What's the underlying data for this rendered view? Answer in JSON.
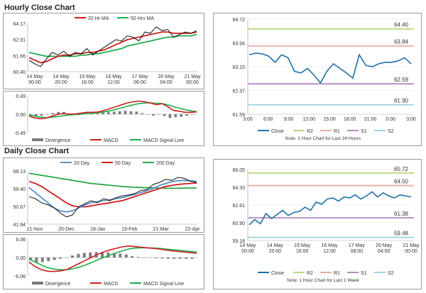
{
  "sections": [
    {
      "title": "Hourly Close Chart"
    },
    {
      "title": "Daily Close Chart"
    }
  ],
  "colors": {
    "close": "#1f6fa8",
    "ma_short": "#cc1f1f",
    "ma_long": "#1fae4c",
    "ma_200": "#2aa64a",
    "ma_20": "#5a8fc6",
    "divergence": "#7a7a7a",
    "r2": "#b8d884",
    "r1": "#e4b0a4",
    "s1": "#b48ac0",
    "s2": "#9cd2e0",
    "grid": "#c8c8c8"
  },
  "chart_data": [
    {
      "id": "hourly-price",
      "type": "line",
      "legend": [
        "20 Hr MA",
        "50 Hrs MA"
      ],
      "x_ticks": [
        "14 May\n00:00",
        "14 May\n20:00",
        "15 May\n16:00",
        "16 May\n12:00",
        "17 May\n08:00",
        "20 May\n04:00",
        "21 May\n00:00"
      ],
      "y_ticks": [
        "64.17",
        "62.91",
        "61.66",
        "60.40"
      ],
      "ylim": [
        60.4,
        64.17
      ],
      "series": [
        {
          "name": "Close",
          "color": "#111111",
          "values": [
            61.3,
            61.0,
            60.8,
            61.4,
            61.9,
            61.7,
            62.0,
            61.6,
            61.9,
            61.8,
            62.2,
            61.7,
            62.0,
            62.3,
            62.6,
            62.9,
            62.8,
            63.2,
            63.1,
            62.8,
            63.5,
            63.4,
            63.9,
            63.6,
            63.7,
            63.1,
            63.3,
            63.5,
            63.4,
            63.6
          ]
        },
        {
          "name": "20 Hr MA",
          "color": "#cc1f1f",
          "values": [
            61.5,
            61.3,
            61.1,
            61.2,
            61.4,
            61.6,
            61.7,
            61.7,
            61.8,
            61.8,
            61.9,
            61.9,
            62.0,
            62.1,
            62.3,
            62.5,
            62.7,
            62.9,
            63.0,
            63.1,
            63.2,
            63.3,
            63.4,
            63.5,
            63.5,
            63.4,
            63.4,
            63.4,
            63.4,
            63.5
          ]
        },
        {
          "name": "50 Hrs MA",
          "color": "#1fae4c",
          "values": [
            61.9,
            61.8,
            61.7,
            61.6,
            61.6,
            61.6,
            61.6,
            61.6,
            61.6,
            61.7,
            61.7,
            61.8,
            61.8,
            61.9,
            62.0,
            62.1,
            62.2,
            62.4,
            62.5,
            62.6,
            62.7,
            62.8,
            62.9,
            63.0,
            63.1,
            63.1,
            63.2,
            63.2,
            63.2,
            63.3
          ]
        }
      ]
    },
    {
      "id": "hourly-macd",
      "type": "line",
      "legend": [
        "Divergence",
        "MACD",
        "MACD Signal Line"
      ],
      "y_ticks": [
        "0.49",
        "0.00",
        "-0.49"
      ],
      "ylim": [
        -0.49,
        0.49
      ],
      "series": [
        {
          "name": "MACD",
          "color": "#cc1f1f",
          "values": [
            -0.05,
            -0.1,
            -0.12,
            -0.1,
            -0.05,
            0.0,
            0.02,
            0.0,
            0.01,
            0.03,
            0.05,
            0.05,
            0.06,
            0.1,
            0.15,
            0.2,
            0.25,
            0.3,
            0.33,
            0.35,
            0.33,
            0.3,
            0.25,
            0.28,
            0.2,
            0.1,
            0.08,
            0.05,
            0.05,
            0.06
          ]
        },
        {
          "name": "MACD Signal Line",
          "color": "#1fae4c",
          "values": [
            -0.02,
            -0.05,
            -0.08,
            -0.09,
            -0.08,
            -0.06,
            -0.04,
            -0.02,
            -0.01,
            0.0,
            0.02,
            0.03,
            0.04,
            0.06,
            0.09,
            0.13,
            0.17,
            0.21,
            0.25,
            0.28,
            0.3,
            0.3,
            0.29,
            0.28,
            0.25,
            0.2,
            0.16,
            0.12,
            0.09,
            0.07
          ]
        },
        {
          "name": "Divergence",
          "color": "#7a7a7a",
          "values": [
            -0.03,
            -0.05,
            -0.04,
            -0.01,
            0.03,
            0.06,
            0.06,
            0.02,
            0.02,
            0.03,
            0.03,
            0.02,
            0.02,
            0.04,
            0.06,
            0.07,
            0.08,
            0.09,
            0.08,
            0.07,
            0.03,
            0.0,
            -0.04,
            0.0,
            -0.05,
            -0.1,
            -0.08,
            -0.07,
            -0.04,
            -0.01
          ]
        }
      ]
    },
    {
      "id": "hourly-pivot",
      "type": "line",
      "title": "",
      "x_ticks": [
        "3:00",
        "6:00",
        "9:00",
        "12:00",
        "15:00",
        "18:00",
        "21:00",
        "0:00",
        "3:00"
      ],
      "y_ticks": [
        "64.72",
        "63.94",
        "63.15",
        "62.37",
        "61.59"
      ],
      "ylim": [
        61.59,
        64.72
      ],
      "levels": [
        {
          "name": "R2",
          "value": 64.4,
          "label": "64.40",
          "color": "#b8d884"
        },
        {
          "name": "R1",
          "value": 63.84,
          "label": "63.84",
          "color": "#e4b0a4"
        },
        {
          "name": "S1",
          "value": 62.59,
          "label": "62.59",
          "color": "#b48ac0"
        },
        {
          "name": "S2",
          "value": 61.9,
          "label": "61.90",
          "color": "#9cd2e0"
        }
      ],
      "series": [
        {
          "name": "Close",
          "color": "#1f6fa8",
          "values": [
            63.55,
            63.6,
            63.58,
            63.5,
            63.3,
            63.55,
            63.45,
            63.0,
            62.95,
            63.1,
            62.88,
            62.62,
            63.0,
            63.25,
            63.1,
            62.95,
            62.78,
            63.55,
            63.2,
            63.15,
            63.25,
            63.3,
            63.3,
            63.35,
            63.45,
            63.25
          ]
        }
      ],
      "legend": [
        "Close",
        "R2",
        "R1",
        "S1",
        "S2"
      ],
      "note": "Note: 1 Hour Chart for Last 24 Hours"
    },
    {
      "id": "daily-price",
      "type": "line",
      "legend": [
        "20 Day",
        "50 Day",
        "200 Day"
      ],
      "x_ticks": [
        "21-Nov",
        "20-Dec",
        "18-Jan",
        "19-Feb",
        "21-Mar",
        "22-Apr"
      ],
      "y_ticks": [
        "68.13",
        "59.40",
        "50.67",
        "41.94"
      ],
      "ylim": [
        41.94,
        68.13
      ],
      "series": [
        {
          "name": "Close",
          "color": "#111111",
          "values": [
            55.5,
            54.5,
            52.5,
            51.5,
            50.0,
            47.5,
            45.5,
            46.5,
            50.5,
            52.0,
            53.5,
            52.5,
            54.5,
            53.5,
            55.0,
            55.8,
            56.3,
            57.0,
            58.5,
            59.0,
            61.5,
            62.5,
            64.0,
            63.5,
            65.0,
            64.5,
            63.0,
            62.5
          ]
        },
        {
          "name": "20 Day",
          "color": "#5a8fc6",
          "values": [
            60.0,
            57.5,
            55.0,
            52.5,
            50.0,
            48.5,
            48.0,
            48.5,
            50.0,
            51.5,
            52.5,
            53.0,
            53.5,
            54.0,
            54.5,
            55.0,
            55.8,
            56.5,
            57.5,
            58.5,
            59.5,
            61.0,
            62.0,
            62.8,
            63.3,
            63.5,
            63.3,
            63.0
          ]
        },
        {
          "name": "50 Day",
          "color": "#cc1f1f",
          "values": [
            63.0,
            62.0,
            60.5,
            58.5,
            56.5,
            54.5,
            52.5,
            51.0,
            50.5,
            50.5,
            51.0,
            51.5,
            52.0,
            52.5,
            53.0,
            53.5,
            54.5,
            55.5,
            56.5,
            57.5,
            58.5,
            59.5,
            60.5,
            61.0,
            61.5,
            61.8,
            62.0,
            62.2
          ]
        },
        {
          "name": "200 Day",
          "color": "#2aa64a",
          "values": [
            67.0,
            66.5,
            66.0,
            65.5,
            65.0,
            64.5,
            64.0,
            63.5,
            63.0,
            62.5,
            62.0,
            61.7,
            61.4,
            61.1,
            60.8,
            60.5,
            60.3,
            60.1,
            60.0,
            59.9,
            59.8,
            59.7,
            59.6,
            59.6,
            59.6,
            59.7,
            59.7,
            59.8
          ]
        }
      ]
    },
    {
      "id": "daily-macd",
      "type": "line",
      "legend": [
        "Divergence",
        "MACD",
        "MACD Signal Line"
      ],
      "y_ticks": [
        "6.06",
        "0.00",
        "-6.06"
      ],
      "ylim": [
        -6.06,
        6.06
      ],
      "series": [
        {
          "name": "MACD",
          "color": "#cc1f1f",
          "values": [
            -1.5,
            -3.0,
            -4.0,
            -4.5,
            -4.6,
            -4.4,
            -4.0,
            -3.0,
            -2.0,
            -1.0,
            0.0,
            1.0,
            1.8,
            2.5,
            3.0,
            3.5,
            3.8,
            3.6,
            3.4,
            3.2,
            3.0,
            2.8,
            2.5,
            2.2,
            2.0,
            1.8,
            1.6,
            1.4
          ]
        },
        {
          "name": "MACD Signal Line",
          "color": "#1fae4c",
          "values": [
            -0.5,
            -1.5,
            -2.5,
            -3.3,
            -3.8,
            -4.0,
            -4.0,
            -3.7,
            -3.2,
            -2.5,
            -1.7,
            -0.8,
            0.0,
            0.8,
            1.5,
            2.2,
            2.8,
            3.1,
            3.2,
            3.2,
            3.1,
            3.0,
            2.8,
            2.6,
            2.4,
            2.2,
            2.0,
            1.8
          ]
        },
        {
          "name": "Divergence",
          "color": "#7a7a7a",
          "values": [
            -1.0,
            -1.5,
            -1.5,
            -1.2,
            -0.8,
            -0.4,
            0.0,
            0.7,
            1.2,
            1.5,
            1.7,
            1.8,
            1.8,
            1.7,
            1.5,
            1.3,
            1.0,
            0.5,
            0.2,
            0.0,
            -0.1,
            -0.2,
            -0.3,
            -0.4,
            -0.4,
            -0.4,
            -0.4,
            -0.4
          ]
        }
      ]
    },
    {
      "id": "weekly-pivot",
      "type": "line",
      "x_ticks": [
        "14 May\n00:00",
        "14 May\n20:00",
        "15 May\n16:00",
        "16 May\n12:00",
        "17 May\n08:00",
        "20 May\n04:00",
        "21 May\n00:00"
      ],
      "y_ticks": [
        "66.05",
        "64.33",
        "62.61",
        "60.90",
        "59.18"
      ],
      "ylim": [
        59.18,
        66.05
      ],
      "levels": [
        {
          "name": "R2",
          "value": 65.72,
          "label": "65.72",
          "color": "#b8d884"
        },
        {
          "name": "R1",
          "value": 64.5,
          "label": "64.50",
          "color": "#e4b0a4"
        },
        {
          "name": "S1",
          "value": 61.38,
          "label": "61.38",
          "color": "#b48ac0"
        },
        {
          "name": "S2",
          "value": 59.48,
          "label": "59.48",
          "color": "#9cd2e0"
        }
      ],
      "series": [
        {
          "name": "Close",
          "color": "#1f6fa8",
          "values": [
            60.7,
            61.2,
            60.8,
            61.8,
            61.3,
            61.7,
            62.1,
            61.6,
            61.9,
            62.0,
            62.4,
            62.1,
            62.9,
            62.7,
            63.2,
            63.3,
            63.0,
            63.4,
            63.3,
            63.6,
            63.2,
            63.5,
            63.9,
            63.4,
            63.8,
            63.5,
            63.3,
            63.6,
            63.5,
            63.4
          ]
        }
      ],
      "legend": [
        "Close",
        "R2",
        "R1",
        "S1",
        "S2"
      ],
      "note": "Note: 1 Hour Chart for Last 1 Week"
    }
  ]
}
